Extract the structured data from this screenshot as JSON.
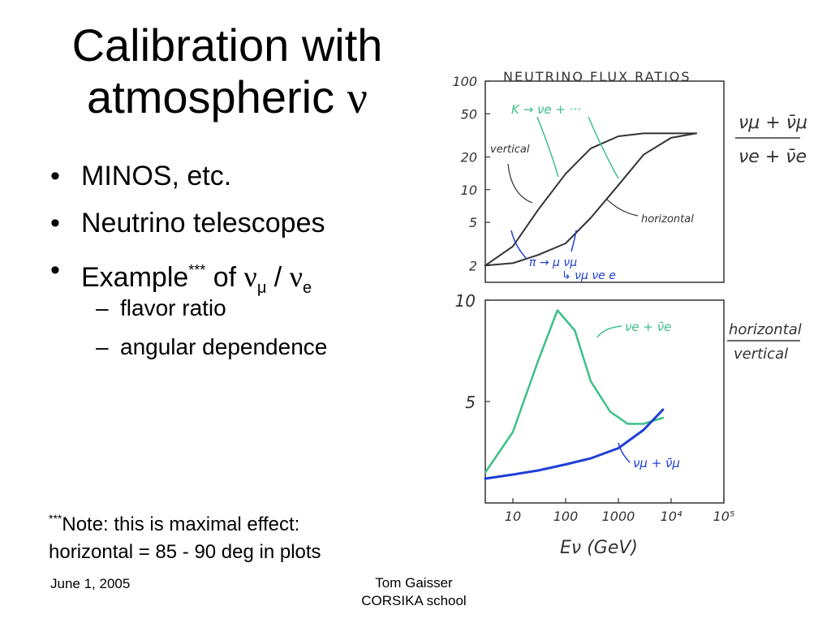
{
  "slide": {
    "title_line1": "Calibration with",
    "title_line2": "atmospheric ",
    "title_symbol": "ν",
    "bullets": {
      "b1": "MINOS, etc.",
      "b2": "Neutrino telescopes",
      "b3_prefix": "Example",
      "b3_sup": "***",
      "b3_of": " of ",
      "b3_nu1": "ν",
      "b3_mu": "μ",
      "b3_slash": " / ",
      "b3_nu2": "ν",
      "b3_e": "e"
    },
    "sub_bullets": [
      "flavor ratio",
      "angular dependence"
    ],
    "note_sup": "***",
    "note_line1": "Note: this is maximal effect:",
    "note_line2": "horizontal = 85 - 90 deg in plots",
    "footer_date": "June 1, 2005",
    "footer_author_line1": "Tom Gaisser",
    "footer_author_line2": "CORSIKA school"
  },
  "colors": {
    "green": "#3dbf8a",
    "blue": "#1f3fd6",
    "ink": "#333333"
  },
  "chart_data": [
    {
      "type": "line",
      "title": "NEUTRINO FLUX RATIOS",
      "xlabel": "",
      "ylabel_num": "νμ + ν̄μ",
      "ylabel_den": "νe + ν̄e",
      "x_scale": "log",
      "y_scale": "log",
      "xlim": [
        3,
        100000
      ],
      "ylim": [
        1.4,
        100
      ],
      "y_ticks": [
        2,
        5,
        10,
        20,
        50,
        100
      ],
      "series": [
        {
          "name": "vertical",
          "x": [
            3,
            10,
            30,
            100,
            300,
            1000,
            3000,
            10000,
            30000
          ],
          "y": [
            2.0,
            3.0,
            6.5,
            14,
            24,
            31,
            33,
            33,
            33
          ]
        },
        {
          "name": "horizontal",
          "x": [
            3,
            10,
            30,
            100,
            300,
            1000,
            3000,
            10000,
            30000
          ],
          "y": [
            2.0,
            2.1,
            2.5,
            3.2,
            5.5,
            11,
            21,
            30,
            33
          ]
        }
      ],
      "annotations": [
        "K → νe + ···",
        "vertical",
        "horizontal",
        "π → μ νμ",
        "↳ νμ νe e"
      ]
    },
    {
      "type": "line",
      "title": "",
      "xlabel": "Eν (GeV)",
      "ylabel_num": "horizontal",
      "ylabel_den": "vertical",
      "x_scale": "log",
      "xlim": [
        3,
        100000
      ],
      "ylim": [
        0,
        10
      ],
      "x_ticks": [
        "10",
        "100",
        "1000",
        "10⁴",
        "10⁵"
      ],
      "y_ticks": [
        5,
        10
      ],
      "series": [
        {
          "name": "νe + ν̄e",
          "x": [
            3,
            10,
            30,
            70,
            150,
            300,
            700,
            1500,
            3000,
            7000
          ],
          "y": [
            1.5,
            3.5,
            7.0,
            9.5,
            8.5,
            6.0,
            4.5,
            3.9,
            3.9,
            4.2
          ]
        },
        {
          "name": "νμ + ν̄μ",
          "x": [
            3,
            10,
            30,
            100,
            300,
            1000,
            3000,
            7000
          ],
          "y": [
            1.2,
            1.4,
            1.6,
            1.9,
            2.2,
            2.7,
            3.6,
            4.6
          ]
        }
      ]
    }
  ]
}
